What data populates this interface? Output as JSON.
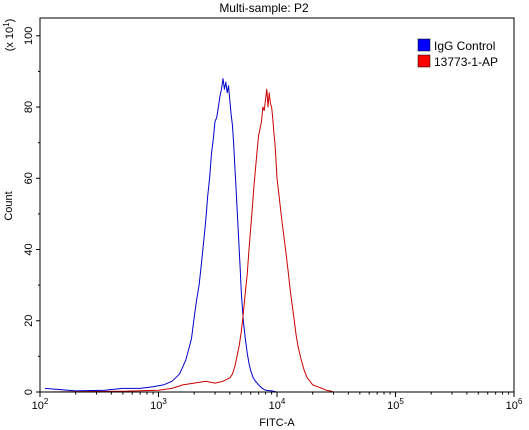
{
  "chart_data": {
    "type": "line",
    "title": "Multi-sample: P2",
    "xlabel": "FITC-A",
    "ylabel": "Count",
    "y_multiplier_label": "(x 10",
    "y_multiplier_exp": "1",
    "y_multiplier_close": ")",
    "x_scale": "log",
    "xlim": [
      100,
      1000000
    ],
    "ylim": [
      0,
      105
    ],
    "grid": false,
    "legend_position": "top-right",
    "x_ticks": [
      {
        "value": 100,
        "base": "10",
        "exp": "2"
      },
      {
        "value": 1000,
        "base": "10",
        "exp": "3"
      },
      {
        "value": 10000,
        "base": "10",
        "exp": "4"
      },
      {
        "value": 100000,
        "base": "10",
        "exp": "5"
      },
      {
        "value": 1000000,
        "base": "10",
        "exp": "6"
      }
    ],
    "y_ticks": [
      0,
      20,
      40,
      60,
      80,
      100
    ],
    "series": [
      {
        "name": "IgG Control",
        "color": "#0000cc",
        "legend_color": "#0000ff",
        "x": [
          110,
          200,
          350,
          500,
          700,
          900,
          1100,
          1300,
          1500,
          1600,
          1700,
          1800,
          1900,
          2000,
          2100,
          2200,
          2300,
          2400,
          2500,
          2600,
          2700,
          2800,
          2900,
          3000,
          3100,
          3200,
          3300,
          3400,
          3500,
          3600,
          3700,
          3800,
          3900,
          4000,
          4100,
          4200,
          4300,
          4400,
          4500,
          4600,
          4700,
          4800,
          4900,
          5000,
          5200,
          5400,
          5600,
          5800,
          6000,
          6300,
          6600,
          7000,
          7500,
          8000,
          9000,
          10000
        ],
        "y": [
          1,
          0.3,
          0.5,
          1,
          1,
          1.5,
          2,
          3,
          5,
          7,
          9,
          12,
          15,
          21,
          26,
          30,
          36,
          42,
          48,
          55,
          60,
          67,
          71,
          76,
          77,
          80,
          83,
          85,
          88,
          85,
          87,
          84,
          86,
          82,
          78,
          75,
          70,
          64,
          58,
          52,
          46,
          40,
          34,
          28,
          20,
          15,
          11,
          8,
          6,
          4,
          3,
          2,
          1,
          0.5,
          0.3,
          0
        ]
      },
      {
        "name": "13773-1-AP",
        "color": "#cc0000",
        "legend_color": "#ff0000",
        "x": [
          110,
          500,
          1000,
          1300,
          1600,
          2000,
          2500,
          3000,
          3500,
          4000,
          4200,
          4400,
          4600,
          4800,
          5000,
          5200,
          5400,
          5600,
          5800,
          6000,
          6200,
          6400,
          6600,
          6800,
          7000,
          7200,
          7400,
          7600,
          7800,
          8000,
          8200,
          8400,
          8600,
          8800,
          9000,
          9200,
          9400,
          9600,
          9800,
          10000,
          10500,
          11000,
          11500,
          12000,
          12500,
          13000,
          13500,
          14000,
          14500,
          15000,
          16000,
          17000,
          18000,
          19000,
          20000,
          22000,
          24000,
          26000,
          28000,
          30000
        ],
        "y": [
          0,
          0.2,
          0.5,
          1,
          2,
          2.5,
          3,
          2.5,
          3,
          4,
          5,
          7,
          10,
          13,
          17,
          22,
          28,
          33,
          40,
          46,
          52,
          58,
          63,
          68,
          72,
          74,
          76,
          80,
          79,
          82,
          85,
          80,
          84,
          81,
          80,
          77,
          73,
          70,
          65,
          60,
          54,
          48,
          43,
          38,
          33,
          28,
          24,
          20,
          16,
          13,
          9,
          6,
          4,
          3,
          2,
          1.5,
          1,
          0.5,
          0.3,
          0
        ]
      }
    ]
  }
}
